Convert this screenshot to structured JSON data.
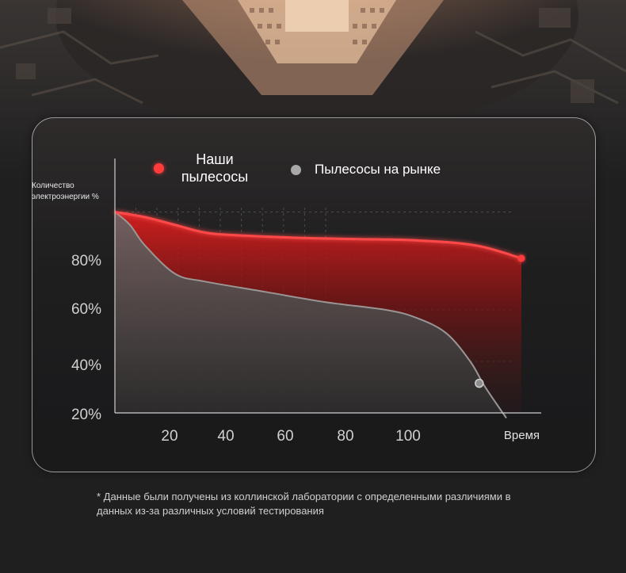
{
  "chart_data": {
    "type": "area",
    "ylabel": "Количество электроэнергии %",
    "xlabel": "Время",
    "x_ticks": [
      20,
      40,
      60,
      80,
      100
    ],
    "y_ticks": [
      "20%",
      "40%",
      "60%",
      "80%"
    ],
    "y_tick_values": [
      20,
      40,
      60,
      80
    ],
    "grid": true,
    "legend_position": "top",
    "series": [
      {
        "name": "Наши пылесосы",
        "color": "#ff3b3b",
        "x": [
          0,
          10,
          20,
          30,
          40,
          60,
          80,
          100,
          120,
          135
        ],
        "y": [
          98,
          96,
          93,
          90,
          89,
          88,
          87.5,
          87,
          85,
          80
        ]
      },
      {
        "name": "Пылесосы на рынке",
        "color": "#a8a8a8",
        "x": [
          0,
          5,
          10,
          20,
          30,
          50,
          70,
          90,
          100,
          110,
          118,
          123,
          130
        ],
        "y": [
          98,
          93,
          85,
          74,
          71,
          67,
          63,
          60,
          57,
          51,
          40,
          30,
          18
        ]
      }
    ]
  },
  "legend": {
    "ours": "Наши пылесосы",
    "market": "Пылесосы на рынке"
  },
  "footnote": "* Данные были получены из коллинской лаборатории с определенными различиями в данных из-за различных условий тестирования"
}
